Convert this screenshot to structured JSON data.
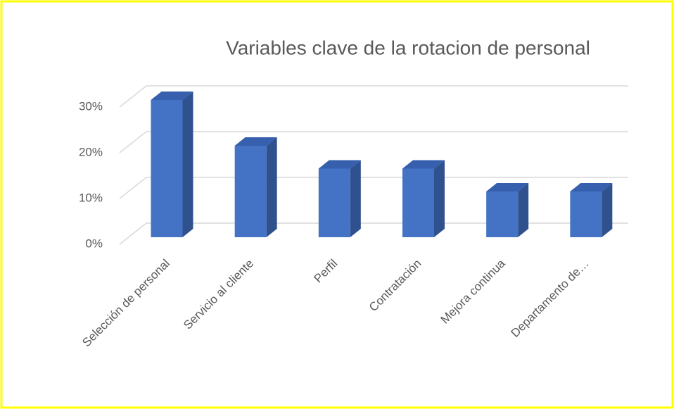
{
  "chart_data": {
    "type": "bar3d",
    "title": "Variables clave de la rotacion de personal",
    "categories": [
      "Selección de personal",
      "Servicio al cliente",
      "Perfil",
      "Contratación",
      "Mejora continua",
      "Departamento de…"
    ],
    "values": [
      30,
      20,
      15,
      15,
      10,
      10
    ],
    "color": "#4472c4",
    "ylim": [
      0,
      30
    ],
    "yticks": [
      {
        "value": 0,
        "label": "0%"
      },
      {
        "value": 10,
        "label": "10%"
      },
      {
        "value": 20,
        "label": "20%"
      },
      {
        "value": 30,
        "label": "30%"
      }
    ],
    "grid": true
  }
}
